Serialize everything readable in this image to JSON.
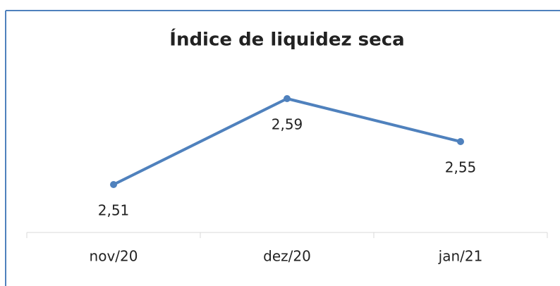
{
  "chart_data": {
    "type": "line",
    "title": "Índice de liquidez  seca",
    "categories": [
      "nov/20",
      "dez/20",
      "jan/21"
    ],
    "series": [
      {
        "color": "#4f81bd",
        "values": [
          2.51,
          2.59,
          2.55
        ],
        "value_labels": [
          "2,51",
          "2,59",
          "2,55"
        ]
      }
    ]
  }
}
